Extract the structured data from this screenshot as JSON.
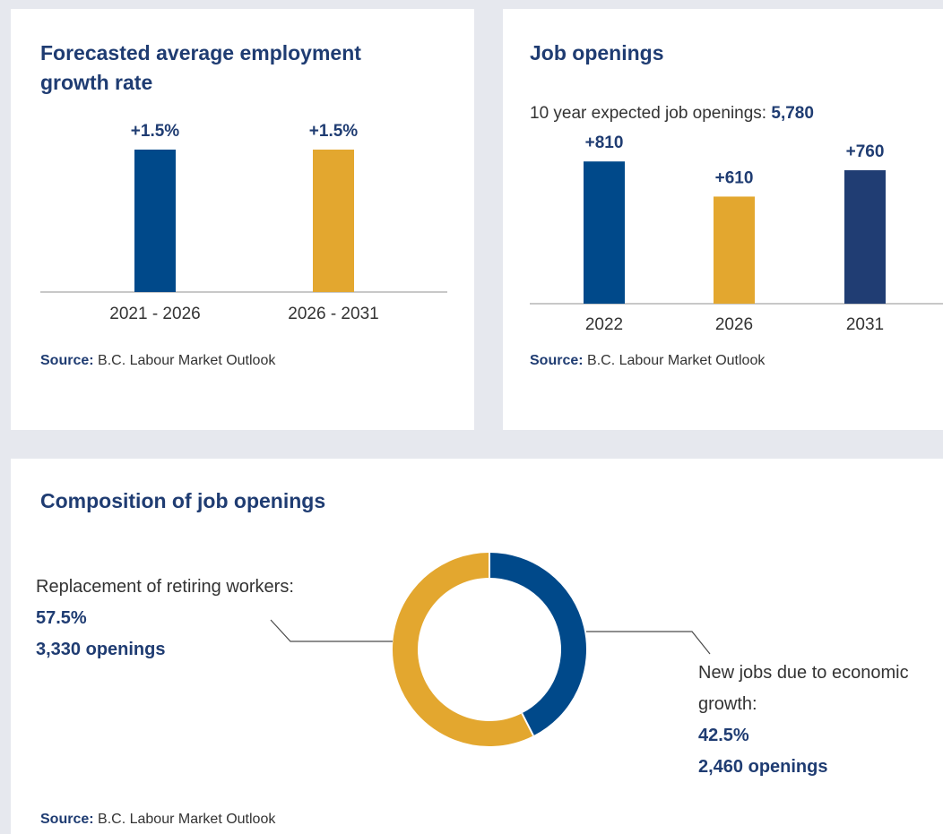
{
  "chart_data": [
    {
      "type": "bar",
      "title": "Forecasted average employment growth rate",
      "categories": [
        "2021 - 2026",
        "2026 - 2031"
      ],
      "values": [
        1.5,
        1.5
      ],
      "value_labels": [
        "+1.5%",
        "+1.5%"
      ],
      "colors": [
        "#00498a",
        "#e3a72f"
      ],
      "ylim": [
        0,
        2
      ],
      "grid": false,
      "source_label": "Source:",
      "source_text": "B.C. Labour Market Outlook"
    },
    {
      "type": "bar",
      "title": "Job openings",
      "subtitle_label": "10 year expected job openings:",
      "subtitle_value": "5,780",
      "categories": [
        "2022",
        "2026",
        "2031"
      ],
      "values": [
        810,
        610,
        760
      ],
      "value_labels": [
        "+810",
        "+610",
        "+760"
      ],
      "colors": [
        "#00498a",
        "#e3a72f",
        "#203d73"
      ],
      "ylim": [
        0,
        1000
      ],
      "grid": false,
      "source_label": "Source:",
      "source_text": "B.C. Labour Market Outlook"
    },
    {
      "type": "pie",
      "title": "Composition of job openings",
      "slices": [
        {
          "label": "New jobs due to economic growth:",
          "percent_label": "42.5%",
          "value": 42.5,
          "openings": "2,460 openings",
          "color": "#00498a"
        },
        {
          "label": "Replacement of retiring workers:",
          "percent_label": "57.5%",
          "value": 57.5,
          "openings": "3,330 openings",
          "color": "#e3a72f"
        }
      ],
      "source_label": "Source:",
      "source_text": "B.C. Labour Market Outlook"
    }
  ]
}
